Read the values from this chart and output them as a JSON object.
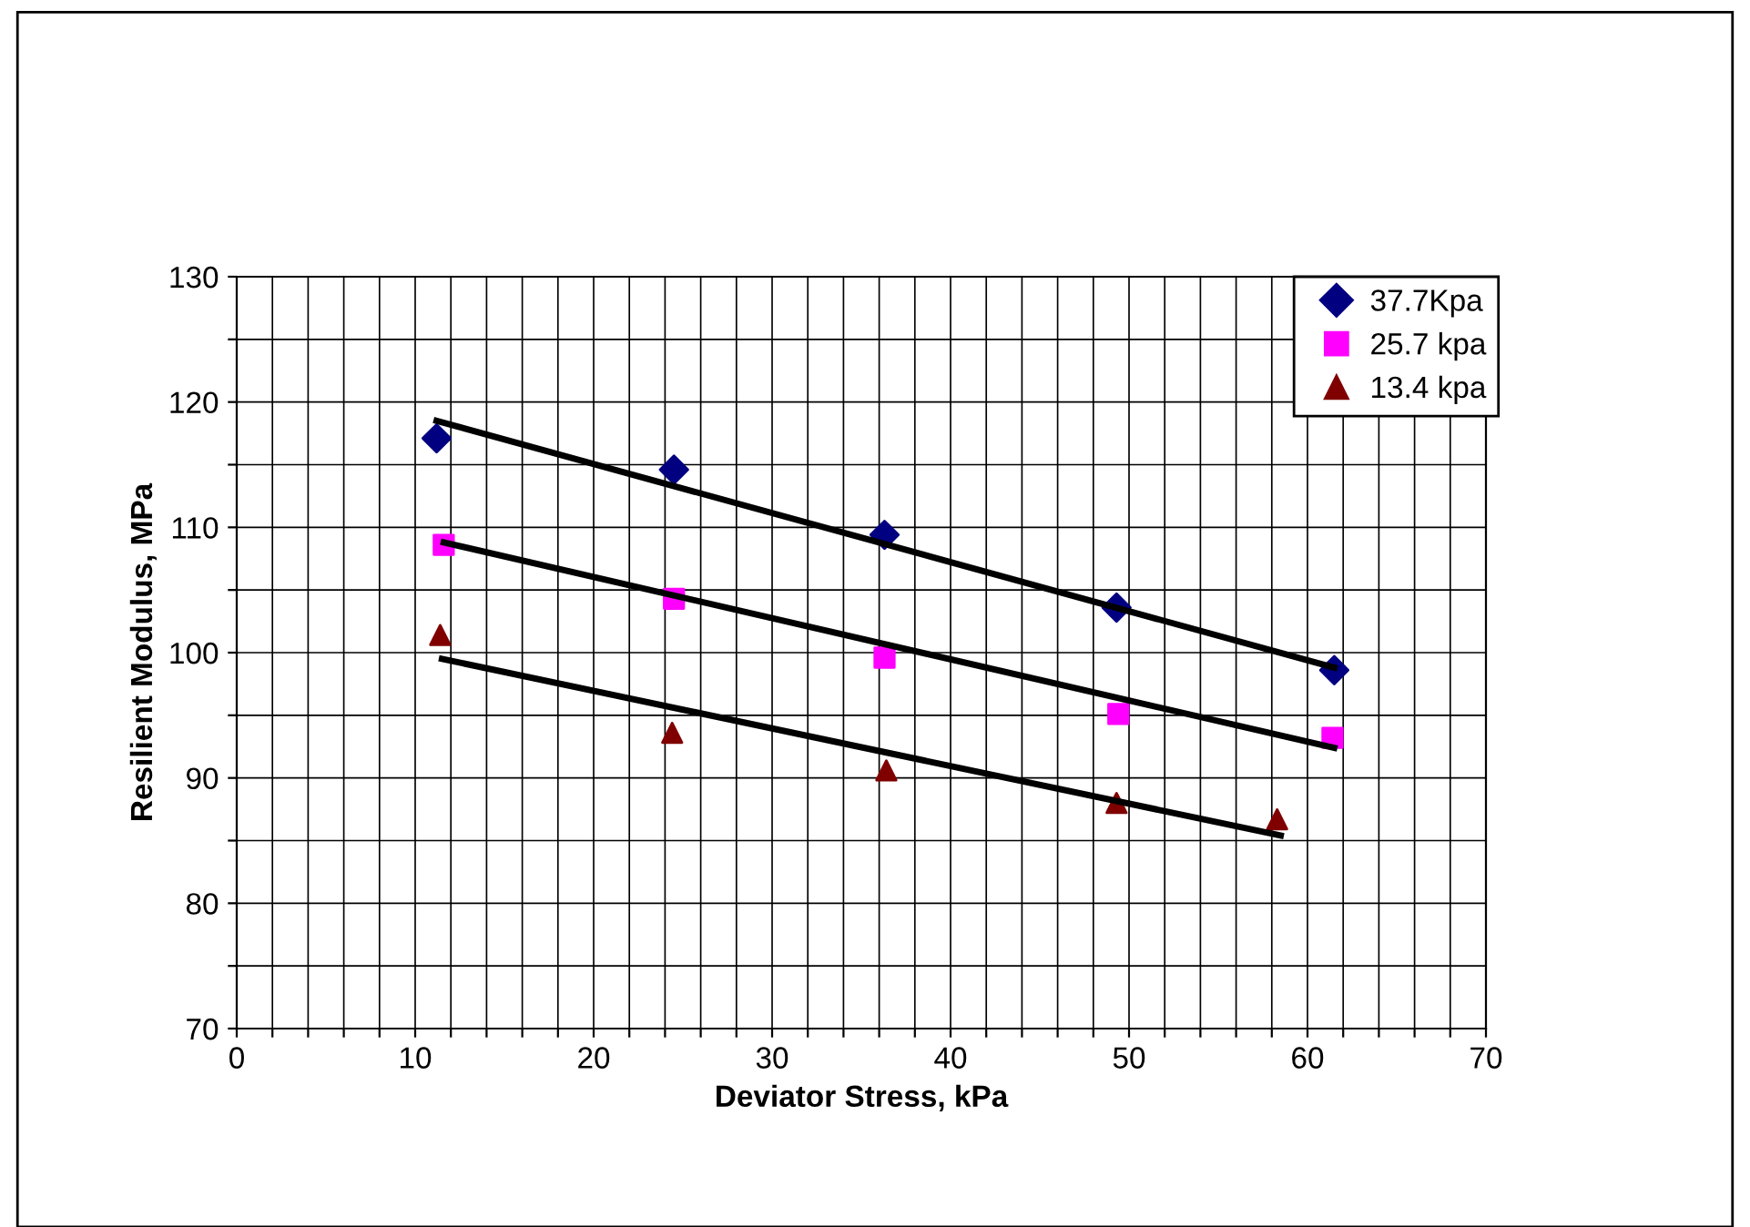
{
  "chart_data": {
    "type": "scatter",
    "xlabel": "Deviator Stress, kPa",
    "ylabel": "Resilient Modulus, MPa",
    "xlim": [
      0,
      70
    ],
    "ylim": [
      70,
      130
    ],
    "xticks": [
      0,
      {
        "value": 2,
        "label": null
      },
      {
        "value": 4,
        "label": null
      },
      {
        "value": 6,
        "label": null
      },
      {
        "value": 8,
        "label": null
      },
      10,
      {
        "value": 12,
        "label": null
      },
      {
        "value": 14,
        "label": null
      },
      {
        "value": 16,
        "label": null
      },
      {
        "value": 18,
        "label": null
      },
      20,
      {
        "value": 22,
        "label": null
      },
      {
        "value": 24,
        "label": null
      },
      {
        "value": 26,
        "label": null
      },
      {
        "value": 28,
        "label": null
      },
      30,
      {
        "value": 32,
        "label": null
      },
      {
        "value": 34,
        "label": null
      },
      {
        "value": 36,
        "label": null
      },
      {
        "value": 38,
        "label": null
      },
      40,
      {
        "value": 42,
        "label": null
      },
      {
        "value": 44,
        "label": null
      },
      {
        "value": 46,
        "label": null
      },
      {
        "value": 48,
        "label": null
      },
      50,
      {
        "value": 52,
        "label": null
      },
      {
        "value": 54,
        "label": null
      },
      {
        "value": 56,
        "label": null
      },
      {
        "value": 58,
        "label": null
      },
      60,
      {
        "value": 62,
        "label": null
      },
      {
        "value": 64,
        "label": null
      },
      {
        "value": 66,
        "label": null
      },
      {
        "value": 68,
        "label": null
      },
      70
    ],
    "yticks": [
      70,
      {
        "value": 75,
        "label": null
      },
      80,
      {
        "value": 85,
        "label": null
      },
      90,
      {
        "value": 95,
        "label": null
      },
      100,
      {
        "value": 105,
        "label": null
      },
      110,
      {
        "value": 115,
        "label": null
      },
      120,
      {
        "value": 125,
        "label": null
      },
      130
    ],
    "grid": true,
    "legend": "top right",
    "series": [
      {
        "name": "37.7Kpa",
        "color": "#000080",
        "marker": "diamond",
        "x": [
          11.2,
          24.5,
          36.3,
          49.3,
          61.5
        ],
        "values": [
          117.1,
          114.6,
          109.4,
          103.6,
          98.6
        ]
      },
      {
        "name": "25.7 kpa",
        "color": "#ff00ff",
        "marker": "square",
        "x": [
          11.6,
          24.5,
          36.3,
          49.4,
          61.4
        ],
        "values": [
          108.6,
          104.3,
          99.6,
          95.1,
          93.2
        ]
      },
      {
        "name": "13.4 kpa",
        "color": "#800000",
        "marker": "triangle",
        "x": [
          11.4,
          24.4,
          36.4,
          49.3,
          58.3
        ],
        "values": [
          101.4,
          93.6,
          90.6,
          88.0,
          86.7
        ]
      },
      {
        "type": "line",
        "color": "#000000",
        "x": [
          11.2,
          61.5
        ],
        "values": [
          118.5,
          98.8
        ]
      },
      {
        "type": "line",
        "color": "#000000",
        "x": [
          11.6,
          61.5
        ],
        "values": [
          108.8,
          92.4
        ]
      },
      {
        "type": "line",
        "color": "#000000",
        "x": [
          11.5,
          58.5
        ],
        "values": [
          99.5,
          85.4
        ]
      }
    ]
  }
}
